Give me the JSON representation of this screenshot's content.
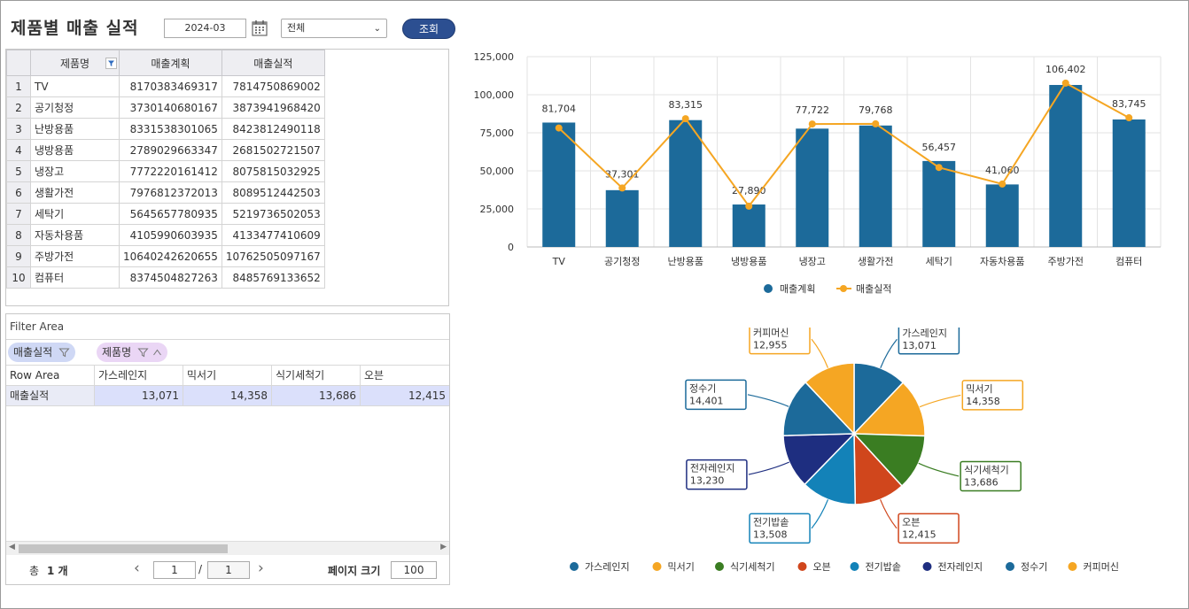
{
  "header": {
    "title": "제품별 매출 실적",
    "date_value": "2024-03",
    "select_value": "전체",
    "query_label": "조회"
  },
  "grid": {
    "columns": [
      "제품명",
      "매출계획",
      "매출실적"
    ],
    "rows": [
      {
        "no": "1",
        "name": "TV",
        "plan": "8170383469317",
        "actual": "7814750869002"
      },
      {
        "no": "2",
        "name": "공기청정",
        "plan": "3730140680167",
        "actual": "3873941968420"
      },
      {
        "no": "3",
        "name": "난방용품",
        "plan": "8331538301065",
        "actual": "8423812490118"
      },
      {
        "no": "4",
        "name": "냉방용품",
        "plan": "2789029663347",
        "actual": "2681502721507"
      },
      {
        "no": "5",
        "name": "냉장고",
        "plan": "7772220161412",
        "actual": "8075815032925"
      },
      {
        "no": "6",
        "name": "생활가전",
        "plan": "7976812372013",
        "actual": "8089512442503"
      },
      {
        "no": "7",
        "name": "세탁기",
        "plan": "5645657780935",
        "actual": "5219736502053"
      },
      {
        "no": "8",
        "name": "자동차용품",
        "plan": "4105990603935",
        "actual": "4133477410609"
      },
      {
        "no": "9",
        "name": "주방가전",
        "plan": "10640242620655",
        "actual": "10762505097167"
      },
      {
        "no": "10",
        "name": "컴퓨터",
        "plan": "8374504827263",
        "actual": "8485769133652"
      }
    ]
  },
  "pivot": {
    "filter_area_label": "Filter Area",
    "chip_value": "매출실적",
    "chip_column": "제품명",
    "row_area_label": "Row Area",
    "columns": [
      "가스레인지",
      "믹서기",
      "식기세척기",
      "오븐"
    ],
    "row_label": "매출실적",
    "values": [
      "13,071",
      "14,358",
      "13,686",
      "12,415"
    ]
  },
  "pager": {
    "total_label": "총",
    "total_count": "1 개",
    "page": "1",
    "separator": "/",
    "page_total": "1",
    "page_size_label": "페이지 크기",
    "page_size": "100",
    "prev": "‹",
    "next": "›"
  },
  "colors": {
    "bar": "#1c6a9a",
    "line": "#f5a623",
    "accent_button": "#2c4f91"
  },
  "chart_data": [
    {
      "type": "bar",
      "categories": [
        "TV",
        "공기청정",
        "난방용품",
        "냉방용품",
        "냉장고",
        "생활가전",
        "세탁기",
        "자동차용품",
        "주방가전",
        "컴퓨터"
      ],
      "series": [
        {
          "name": "매출계획",
          "type": "bar",
          "values": [
            81704,
            37301,
            83315,
            27890,
            77722,
            79768,
            56457,
            41060,
            106402,
            83745
          ]
        },
        {
          "name": "매출실적",
          "type": "line",
          "values": [
            78147,
            38739,
            84238,
            26815,
            80758,
            80895,
            52197,
            41335,
            107625,
            84858
          ]
        }
      ],
      "data_labels": [
        "81,704",
        "37,301",
        "83,315",
        "27,890",
        "77,722",
        "79,768",
        "56,457",
        "41,060",
        "106,402",
        "83,745"
      ],
      "y_ticks": [
        "0",
        "25,000",
        "50,000",
        "75,000",
        "100,000",
        "125,000"
      ],
      "ylim": [
        0,
        125000
      ],
      "grid": true,
      "legend": "bottom"
    },
    {
      "type": "pie",
      "slices": [
        {
          "label": "가스레인지",
          "value": 13071,
          "text": "13,071",
          "color": "#1c6a9a"
        },
        {
          "label": "믹서기",
          "value": 14358,
          "text": "14,358",
          "color": "#f5a623"
        },
        {
          "label": "식기세척기",
          "value": 13686,
          "text": "13,686",
          "color": "#3a7d22"
        },
        {
          "label": "오븐",
          "value": 12415,
          "text": "12,415",
          "color": "#d0461c"
        },
        {
          "label": "전기밥솥",
          "value": 13508,
          "text": "13,508",
          "color": "#1382b8"
        },
        {
          "label": "전자레인지",
          "value": 13230,
          "text": "13,230",
          "color": "#1e2e80"
        },
        {
          "label": "정수기",
          "value": 14401,
          "text": "14,401",
          "color": "#1c6a9a"
        },
        {
          "label": "커피머신",
          "value": 12955,
          "text": "12,955",
          "color": "#f5a623"
        }
      ],
      "legend": "bottom"
    }
  ]
}
